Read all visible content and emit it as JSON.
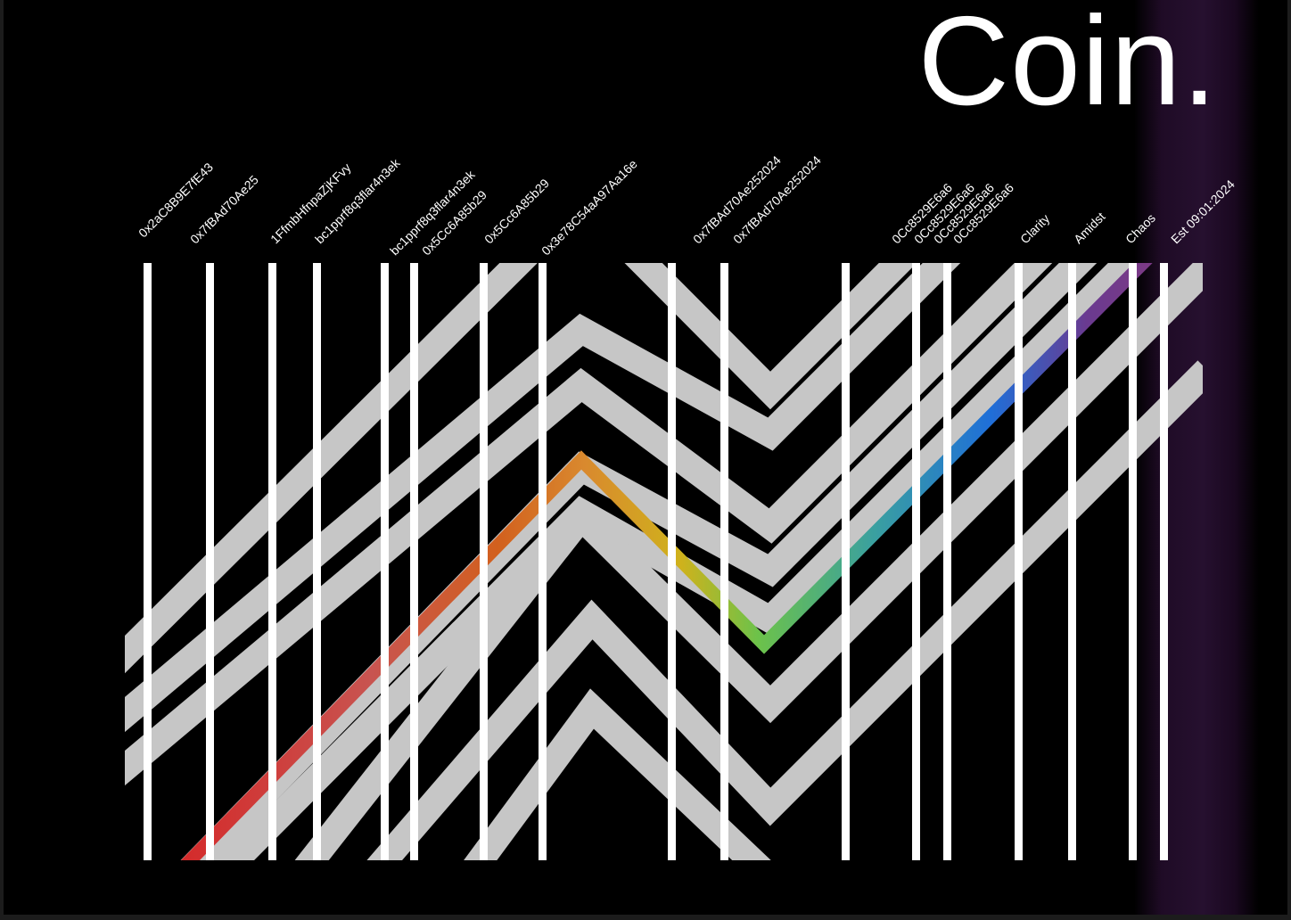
{
  "title": "Coin.",
  "labels": [
    "0x2aC8B9E7fE43",
    "0x7fBAd70Ae25",
    "1FfmbHfnpaZjKFvy",
    "bc1pprf8q3flar4n3ek",
    "bc1pprf8q3flar4n3ek",
    "0x5Cc6A85b29",
    "0x5Cc6A85b29",
    "0x3e78C54aA97Aa16e",
    "0x7fBAd70Ae252024",
    "0x7fBAd70Ae252024",
    "0Cc8529E6a6",
    "0Cc8529E6a6",
    "0Cc8529E6a6",
    "0Cc8529E6a6",
    "Clarity",
    "Amidst",
    "Chaos",
    "Est 09:01:2024"
  ],
  "colors": {
    "background": "#000000",
    "frame": "#1c1c1c",
    "stripes": "#ffffff",
    "chevrons": "#c6c6c6",
    "band": "#26102f",
    "gradient": [
      "#d42a2a",
      "#c85450",
      "#d2601e",
      "#d9892e",
      "#cfb21c",
      "#6cc24a",
      "#3aa0a0",
      "#1f6fd8",
      "#4a3aa8",
      "#7a3a86",
      "#3a1840"
    ]
  }
}
